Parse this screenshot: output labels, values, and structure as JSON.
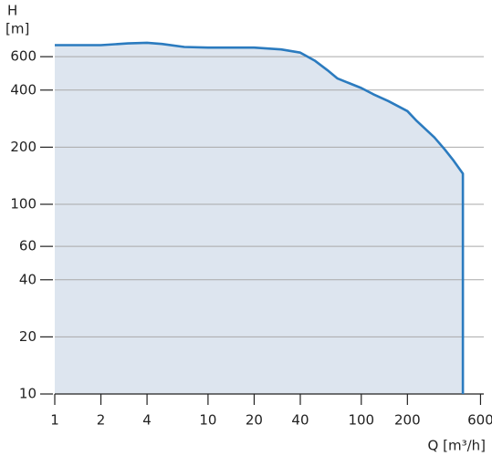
{
  "chart_data": {
    "type": "area",
    "ylabel": "H",
    "yunit": "[m]",
    "xlabel": "Q [m³/h]",
    "x": [
      1,
      2,
      3,
      4,
      5,
      7,
      10,
      20,
      30,
      40,
      50,
      60,
      70,
      100,
      120,
      150,
      200,
      230,
      300,
      350,
      400,
      460,
      460
    ],
    "series": [
      {
        "color": "#2b7bbf",
        "values": [
          690,
          690,
          705,
          710,
          700,
          675,
          670,
          670,
          655,
          630,
          570,
          510,
          460,
          410,
          380,
          350,
          310,
          275,
          225,
          195,
          170,
          145,
          10
        ]
      }
    ],
    "fill": "#dde5ef",
    "xlim": [
      1,
      630
    ],
    "ylim": [
      10,
      1000
    ],
    "xticks": [
      1,
      2,
      4,
      10,
      20,
      40,
      100,
      200,
      600
    ],
    "yticks": [
      10,
      20,
      40,
      60,
      100,
      200,
      400,
      600
    ],
    "xscale": "log",
    "yscale": "log",
    "grid": true
  }
}
